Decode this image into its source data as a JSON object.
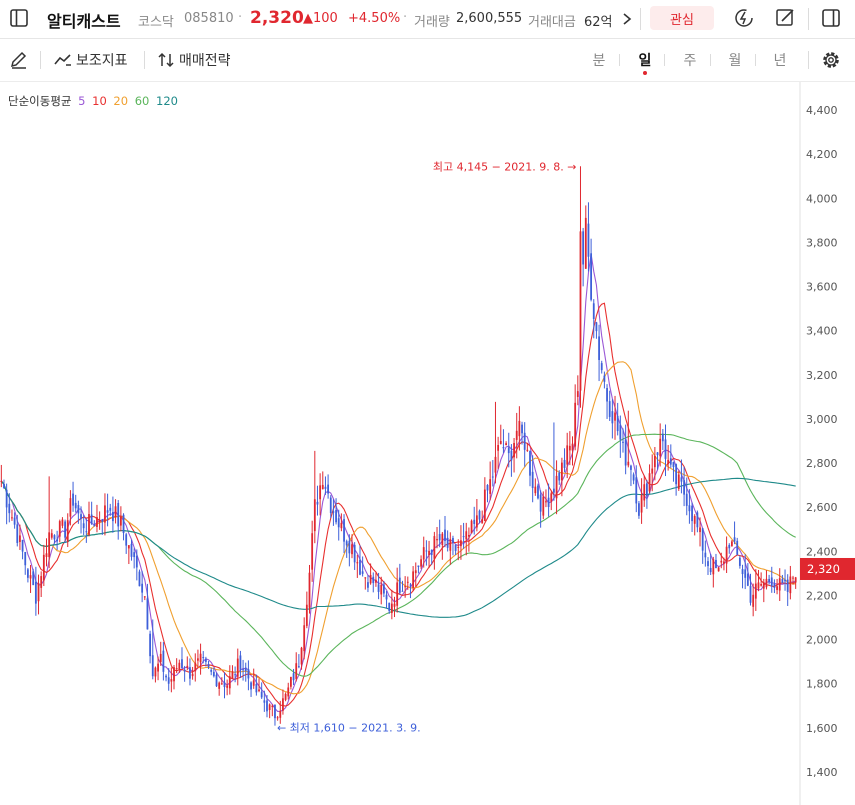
{
  "header": {
    "stock_name": "알티캐스트",
    "market": "코스닥",
    "code": "085810",
    "price": "2,320",
    "change": "▲100",
    "change_pct": "+4.50%",
    "volume_label": "거래량",
    "volume": "2,600,555",
    "amount_label": "거래대금",
    "amount": "62억",
    "favorite_label": "관심",
    "colors": {
      "up": "#e0272f",
      "down": "#3d5fd9"
    }
  },
  "toolbar": {
    "indicator_label": "보조지표",
    "strategy_label": "매매전략",
    "periods": [
      "분",
      "일",
      "주",
      "월",
      "년"
    ],
    "active_period": "일"
  },
  "chart_data": {
    "type": "candlestick",
    "ma_legend": {
      "label": "단순이동평균",
      "periods": [
        {
          "name": "5",
          "color": "#9b59d6"
        },
        {
          "name": "10",
          "color": "#e8302f"
        },
        {
          "name": "20",
          "color": "#f0a030"
        },
        {
          "name": "60",
          "color": "#5bb55b"
        },
        {
          "name": "120",
          "color": "#1f8a8a"
        }
      ]
    },
    "y_axis": {
      "min": 1300,
      "max": 4550,
      "ticks": [
        "4,400",
        "4,200",
        "4,000",
        "3,800",
        "3,600",
        "3,400",
        "3,200",
        "3,000",
        "2,800",
        "2,600",
        "2,400",
        "2,200",
        "2,000",
        "1,800",
        "1,600",
        "1,400"
      ],
      "grid": false
    },
    "current_price_label": "2,320",
    "current_price": 2320,
    "annotations": {
      "high": {
        "text": "최고 4,145 − 2021. 9. 8. →",
        "value": 4145
      },
      "low": {
        "text": "← 최저 1,610 − 2021. 3. 9.",
        "value": 1610
      }
    },
    "anchors": [
      [
        0,
        2720
      ],
      [
        6,
        2480
      ],
      [
        10,
        2300
      ],
      [
        13,
        2200
      ],
      [
        18,
        2480
      ],
      [
        24,
        2500
      ],
      [
        27,
        2640
      ],
      [
        30,
        2530
      ],
      [
        33,
        2520
      ],
      [
        37,
        2560
      ],
      [
        41,
        2600
      ],
      [
        45,
        2520
      ],
      [
        50,
        2350
      ],
      [
        54,
        2200
      ],
      [
        57,
        1840
      ],
      [
        60,
        1900
      ],
      [
        63,
        1800
      ],
      [
        67,
        1900
      ],
      [
        71,
        1850
      ],
      [
        75,
        1900
      ],
      [
        80,
        1830
      ],
      [
        85,
        1800
      ],
      [
        90,
        1900
      ],
      [
        95,
        1780
      ],
      [
        100,
        1700
      ],
      [
        103,
        1660
      ],
      [
        107,
        1740
      ],
      [
        112,
        1900
      ],
      [
        116,
        2300
      ],
      [
        118,
        2600
      ],
      [
        121,
        2750
      ],
      [
        124,
        2620
      ],
      [
        128,
        2500
      ],
      [
        132,
        2420
      ],
      [
        136,
        2300
      ],
      [
        141,
        2250
      ],
      [
        146,
        2150
      ],
      [
        150,
        2250
      ],
      [
        155,
        2300
      ],
      [
        160,
        2400
      ],
      [
        165,
        2450
      ],
      [
        170,
        2400
      ],
      [
        175,
        2450
      ],
      [
        180,
        2550
      ],
      [
        185,
        2750
      ],
      [
        188,
        2900
      ],
      [
        191,
        2820
      ],
      [
        194,
        2950
      ],
      [
        197,
        2900
      ],
      [
        200,
        2720
      ],
      [
        204,
        2600
      ],
      [
        208,
        2700
      ],
      [
        212,
        2800
      ],
      [
        215,
        2900
      ],
      [
        218,
        3300
      ],
      [
        220,
        3850
      ],
      [
        222,
        3600
      ],
      [
        225,
        3300
      ],
      [
        228,
        3100
      ],
      [
        231,
        3000
      ],
      [
        234,
        2850
      ],
      [
        237,
        2800
      ],
      [
        240,
        2600
      ],
      [
        243,
        2700
      ],
      [
        246,
        2850
      ],
      [
        249,
        2900
      ],
      [
        252,
        2750
      ],
      [
        255,
        2700
      ],
      [
        258,
        2650
      ],
      [
        262,
        2500
      ],
      [
        266,
        2350
      ],
      [
        270,
        2300
      ],
      [
        274,
        2450
      ],
      [
        278,
        2350
      ],
      [
        282,
        2200
      ],
      [
        286,
        2250
      ],
      [
        290,
        2280
      ],
      [
        293,
        2240
      ],
      [
        296,
        2220
      ],
      [
        299,
        2320
      ]
    ]
  }
}
